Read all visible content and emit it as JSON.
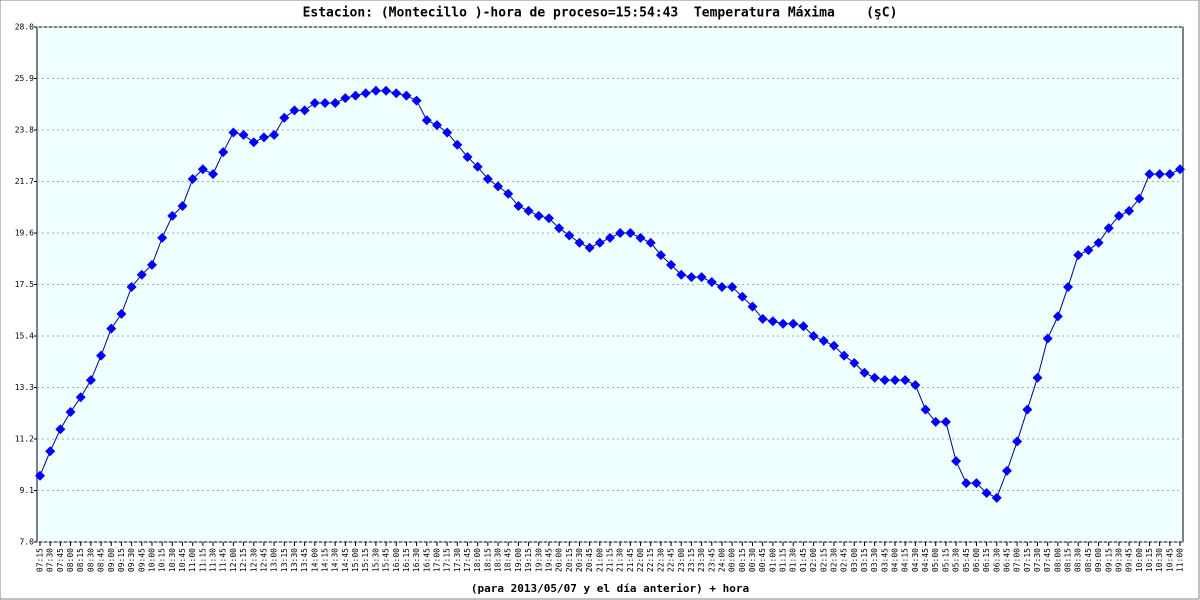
{
  "chart_data": {
    "type": "line",
    "title": "Estacion: (Montecillo )-hora de proceso=15:54:43  Temperatura Máxima    (şC)",
    "x_label": "(para 2013/05/07 y el día anterior) + hora",
    "categories": [
      "07:15",
      "07:30",
      "07:45",
      "08:00",
      "08:15",
      "08:30",
      "08:45",
      "09:00",
      "09:15",
      "09:30",
      "09:45",
      "10:00",
      "10:15",
      "10:30",
      "10:45",
      "11:00",
      "11:15",
      "11:30",
      "11:45",
      "12:00",
      "12:15",
      "12:30",
      "12:45",
      "13:00",
      "13:15",
      "13:30",
      "13:45",
      "14:00",
      "14:15",
      "14:30",
      "14:45",
      "15:00",
      "15:15",
      "15:30",
      "15:45",
      "16:00",
      "16:15",
      "16:30",
      "16:45",
      "17:00",
      "17:15",
      "17:30",
      "17:45",
      "18:00",
      "18:15",
      "18:30",
      "18:45",
      "19:00",
      "19:15",
      "19:30",
      "19:45",
      "20:00",
      "20:15",
      "20:30",
      "20:45",
      "21:00",
      "21:15",
      "21:30",
      "21:45",
      "22:00",
      "22:15",
      "22:30",
      "22:45",
      "23:00",
      "23:15",
      "23:30",
      "23:45",
      "24:00",
      "00:00",
      "00:15",
      "00:30",
      "00:45",
      "01:00",
      "01:15",
      "01:30",
      "01:45",
      "02:00",
      "02:15",
      "02:30",
      "02:45",
      "03:00",
      "03:15",
      "03:30",
      "03:45",
      "04:00",
      "04:15",
      "04:30",
      "04:45",
      "05:00",
      "05:15",
      "05:30",
      "05:45",
      "06:00",
      "06:15",
      "06:30",
      "06:45",
      "07:00",
      "07:15",
      "07:30",
      "07:45",
      "08:00",
      "08:15",
      "08:30",
      "08:45",
      "09:00",
      "09:15",
      "09:30",
      "09:45",
      "10:00",
      "10:15",
      "10:30",
      "10:45",
      "11:00"
    ],
    "values": [
      9.7,
      10.7,
      11.6,
      12.3,
      12.9,
      13.6,
      14.6,
      15.7,
      16.3,
      17.4,
      17.9,
      18.3,
      19.4,
      20.3,
      20.7,
      21.8,
      22.2,
      22.0,
      22.9,
      23.7,
      23.6,
      23.3,
      23.5,
      23.6,
      24.3,
      24.6,
      24.6,
      24.9,
      24.9,
      24.9,
      25.1,
      25.2,
      25.3,
      25.4,
      25.4,
      25.3,
      25.2,
      25.0,
      24.2,
      24.0,
      23.7,
      23.2,
      22.7,
      22.3,
      21.8,
      21.5,
      21.2,
      20.7,
      20.5,
      20.3,
      20.2,
      19.8,
      19.5,
      19.2,
      19.0,
      19.2,
      19.4,
      19.6,
      19.6,
      19.4,
      19.2,
      18.7,
      18.3,
      17.9,
      17.8,
      17.8,
      17.6,
      17.4,
      17.4,
      17.0,
      16.6,
      16.1,
      16.0,
      15.9,
      15.9,
      15.8,
      15.4,
      15.2,
      15.0,
      14.6,
      14.3,
      13.9,
      13.7,
      13.6,
      13.6,
      13.6,
      13.4,
      12.4,
      11.9,
      11.9,
      10.3,
      9.4,
      9.4,
      9.0,
      8.8,
      9.9,
      11.1,
      12.4,
      13.7,
      15.3,
      16.2,
      17.4,
      18.7,
      18.9,
      19.2,
      19.8,
      20.3,
      20.5,
      21.0,
      22.0,
      22.0,
      22.0,
      22.2
    ],
    "color": "#0000ff",
    "line_color": "#00008b",
    "ylim": [
      7.0,
      28.0
    ],
    "yticks": [
      {
        "value": 7.0,
        "label": "7.0"
      },
      9.1,
      11.2,
      13.3,
      15.4,
      17.5,
      19.6,
      21.7,
      23.8,
      25.9,
      {
        "value": 28.0,
        "label": "28.0"
      }
    ],
    "grid": true
  }
}
